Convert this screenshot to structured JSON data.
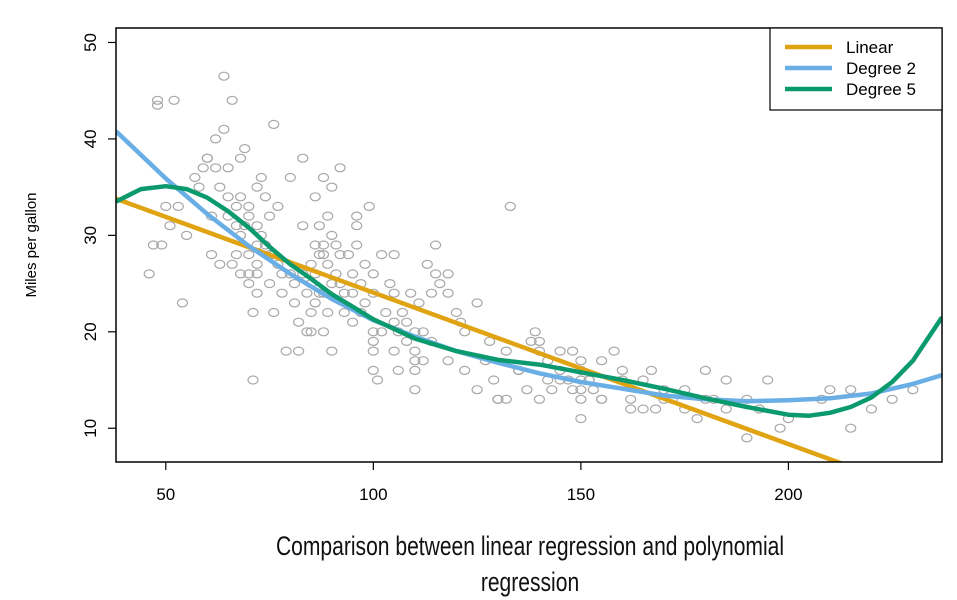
{
  "chart_data": {
    "type": "scatter",
    "ylabel": "Miles per gallon",
    "xlabel": "",
    "xlim": [
      38,
      237
    ],
    "ylim": [
      6.5,
      51.5
    ],
    "x_ticks": [
      50,
      100,
      150,
      200
    ],
    "y_ticks": [
      10,
      20,
      30,
      40,
      50
    ],
    "grid": false,
    "legend_position": "top-right",
    "points_color": "#a8a8a8",
    "scatter": {
      "name": "",
      "x": [
        46,
        49,
        48,
        48,
        52,
        54,
        47,
        53,
        50,
        51,
        57,
        58,
        59,
        60,
        61,
        61,
        62,
        62,
        63,
        64,
        64,
        65,
        65,
        65,
        66,
        66,
        67,
        67,
        67,
        68,
        68,
        68,
        68,
        69,
        69,
        70,
        70,
        70,
        70,
        71,
        71,
        72,
        72,
        72,
        72,
        72,
        73,
        73,
        74,
        74,
        75,
        75,
        75,
        76,
        76,
        76,
        77,
        77,
        78,
        79,
        80,
        80,
        81,
        81,
        82,
        82,
        83,
        83,
        83,
        84,
        84,
        85,
        85,
        85,
        85,
        86,
        86,
        86,
        86,
        87,
        87,
        87,
        88,
        88,
        88,
        88,
        89,
        89,
        89,
        90,
        90,
        90,
        90,
        91,
        91,
        92,
        92,
        93,
        93,
        94,
        95,
        95,
        95,
        96,
        96,
        97,
        97,
        98,
        98,
        99,
        100,
        100,
        100,
        100,
        100,
        101,
        102,
        103,
        104,
        105,
        105,
        105,
        105,
        106,
        107,
        108,
        108,
        109,
        110,
        110,
        110,
        110,
        110,
        111,
        112,
        113,
        114,
        115,
        115,
        116,
        118,
        120,
        121,
        122,
        125,
        127,
        128,
        129,
        130,
        130,
        132,
        133,
        135,
        137,
        138,
        139,
        140,
        140,
        140,
        142,
        143,
        145,
        145,
        147,
        148,
        150,
        150,
        150,
        150,
        150,
        150,
        152,
        153,
        155,
        155,
        158,
        160,
        162,
        165,
        165,
        167,
        170,
        170,
        172,
        175,
        178,
        180,
        180,
        182,
        185,
        190,
        190,
        193,
        195,
        198,
        200,
        208,
        210,
        215,
        215,
        220,
        225,
        230,
        60,
        55,
        63,
        70,
        88,
        96,
        102,
        112,
        118,
        125,
        132,
        145,
        152,
        160,
        175,
        185,
        72,
        78,
        92,
        100,
        106,
        114,
        118,
        122,
        135,
        142,
        148,
        155,
        162,
        168
      ],
      "y": [
        26,
        29,
        43.5,
        44,
        44,
        23,
        29,
        33,
        33,
        31,
        36,
        35,
        37,
        38,
        32,
        28,
        40,
        37,
        35,
        46.5,
        41,
        37,
        34,
        32,
        27,
        44,
        33,
        31,
        28,
        38,
        34,
        30,
        26,
        39,
        31,
        33,
        28,
        26,
        25,
        22,
        15,
        35,
        31,
        29,
        27,
        26,
        36,
        30,
        34,
        29,
        32,
        28,
        25,
        22,
        41.5,
        28,
        33,
        27,
        24,
        18,
        36,
        26,
        25,
        23,
        21,
        18,
        38,
        31,
        26,
        24,
        20,
        27,
        25,
        22,
        20,
        34,
        29,
        26,
        23,
        31,
        28,
        24,
        36,
        28,
        24,
        20,
        32,
        27,
        22,
        35,
        30,
        25,
        18,
        29,
        26,
        37,
        28,
        24,
        22,
        28,
        26,
        24,
        21,
        32,
        29,
        25,
        22,
        23,
        27,
        33,
        26,
        24,
        20,
        19,
        16,
        15,
        20,
        22,
        25,
        28,
        24,
        21,
        18,
        16,
        22,
        19,
        21,
        24,
        20,
        18,
        16,
        14,
        17,
        23,
        20,
        27,
        24,
        26,
        29,
        25,
        24,
        22,
        21,
        20,
        23,
        17,
        19,
        15,
        13,
        13,
        18,
        33,
        16,
        14,
        19,
        20,
        18,
        13,
        19,
        17,
        14,
        15,
        18,
        15,
        18,
        17,
        15,
        13,
        14,
        11,
        16,
        15,
        14,
        13,
        17,
        18,
        16,
        13,
        15,
        12,
        16,
        13,
        14,
        13,
        12,
        11,
        16,
        13,
        13,
        15,
        13,
        9,
        12,
        15,
        10,
        11,
        13,
        14,
        10,
        14,
        12,
        13,
        14,
        38,
        30,
        27,
        32,
        29,
        31,
        28,
        17,
        26,
        14,
        13,
        16,
        15,
        15,
        14,
        12,
        24,
        26,
        25,
        18,
        20,
        19,
        17,
        16,
        16,
        15,
        14,
        13,
        12,
        12
      ]
    },
    "series": [
      {
        "name": "Linear",
        "color": "#e0a312",
        "x": [
          38,
          215
        ],
        "y": [
          33.8,
          6.0
        ]
      },
      {
        "name": "Degree 2",
        "color": "#6aaee6",
        "x": [
          38,
          50,
          60,
          70,
          80,
          90,
          100,
          110,
          120,
          130,
          140,
          150,
          160,
          170,
          180,
          190,
          200,
          210,
          220,
          230,
          237
        ],
        "y": [
          40.8,
          35.9,
          32.2,
          28.9,
          26.0,
          23.4,
          21.2,
          19.5,
          18.0,
          16.8,
          15.7,
          14.8,
          14.1,
          13.4,
          13.0,
          12.8,
          12.9,
          13.1,
          13.6,
          14.6,
          15.5
        ]
      },
      {
        "name": "Degree 5",
        "color": "#0b9a6e",
        "x": [
          38,
          44,
          50,
          55,
          60,
          65,
          70,
          75,
          80,
          85,
          90,
          95,
          100,
          110,
          120,
          130,
          140,
          150,
          160,
          170,
          180,
          190,
          200,
          205,
          210,
          215,
          220,
          225,
          230,
          237
        ],
        "y": [
          33.5,
          34.8,
          35.1,
          34.8,
          33.9,
          32.5,
          30.8,
          28.8,
          27.0,
          25.5,
          23.9,
          22.6,
          21.3,
          19.3,
          18.0,
          17.1,
          16.6,
          15.8,
          15.0,
          14.1,
          13.1,
          12.2,
          11.4,
          11.3,
          11.6,
          12.2,
          13.2,
          14.8,
          17.0,
          21.5
        ]
      }
    ]
  },
  "caption": {
    "line1": "Comparison between linear regression and polynomial",
    "line2": "regression"
  }
}
